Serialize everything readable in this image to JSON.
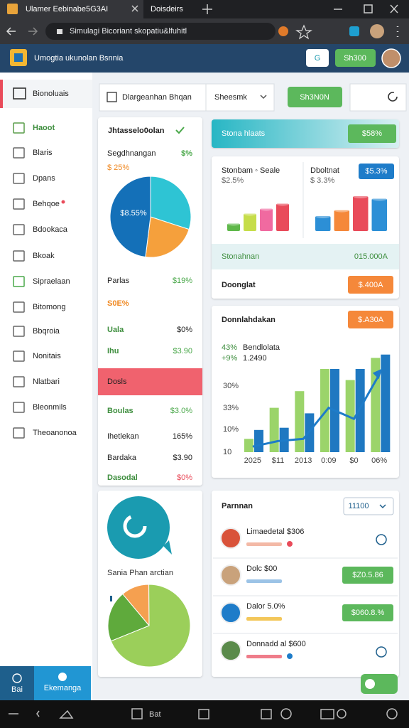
{
  "browser": {
    "tabs": [
      "Ulamer Eebinabe5G3AI",
      "Doisdeirs"
    ],
    "address": "Simulagi Bicoriant skopatiu&lfuhitl"
  },
  "header": {
    "title": "Umogtia ukunolan Bsnnia",
    "search": "G",
    "button": "Sh300"
  },
  "sidebar": {
    "title": "Bionoluais",
    "items": [
      "Haoot",
      "Blaris",
      "Dpans",
      "Behqoe",
      "Bdookaca",
      "Bkoak",
      "Sipraelaan",
      "Bitomong",
      "Bbqroia",
      "Nonitais",
      "Nlatbari",
      "Bleonmils",
      "Theoanonoa"
    ],
    "footer": [
      "Bai",
      "Ekemanga"
    ]
  },
  "toolbar": {
    "search": "Dlargeanhan Bhqan",
    "select": "Sheesmk",
    "button": "Sh3N0N"
  },
  "summary_card": {
    "title": "Jhtasselo0olan",
    "label": "Segdhnangan",
    "label_value": "$%",
    "subvalue": "$ 25%",
    "pie_label": "$8.55%",
    "pie": {
      "values": [
        30,
        22,
        48
      ],
      "colors": [
        "#2ec4d4",
        "#f5a03c",
        "#1470b8"
      ]
    },
    "rows": [
      {
        "label": "Parlas",
        "value": "$19%"
      },
      {
        "label": "S0E%"
      },
      {
        "label": "Uala",
        "value": "$0%"
      },
      {
        "label": "Ihu",
        "value": "$3.90"
      },
      {
        "label": "Dosls"
      },
      {
        "label": "Boulas",
        "value": "$3.0%"
      },
      {
        "label": "Ihetlekan",
        "value": "165%"
      },
      {
        "label": "Bardaka",
        "value": "$3.90"
      },
      {
        "label": "Dasodal",
        "value": "$0%"
      }
    ]
  },
  "banner": {
    "title": "Stona hlaats",
    "badge": "$58%"
  },
  "mini_charts": [
    {
      "title": "Stonbam ◦ Seale",
      "sub": "$2.5%",
      "ylim": [
        0,
        100
      ],
      "values": [
        15,
        35,
        45,
        55
      ],
      "colors": [
        "#5fb84a",
        "#c6dd4a",
        "#f06aa0",
        "#e94b5a"
      ]
    },
    {
      "title": "Dboltnat",
      "sub": "$ 3.3%",
      "badge": "$5.3%",
      "ylim": [
        0,
        100
      ],
      "values": [
        30,
        42,
        70,
        65
      ],
      "colors": [
        "#2c8fd6",
        "#f5883a",
        "#e94b5a",
        "#2c8fd6"
      ]
    }
  ],
  "stat_rows": [
    {
      "label": "Stonahnan",
      "value": "015.000A"
    },
    {
      "label": "Doonglat",
      "button": "$.400A"
    }
  ],
  "trend_card": {
    "title": "Donnlahdakan",
    "button": "$.A30A",
    "legend": [
      {
        "pct": "43%",
        "name": "Bendlolata"
      },
      {
        "pct": "+9%",
        "name": "1.2490"
      }
    ],
    "y_labels": [
      "30%",
      "33%",
      "10%",
      "10"
    ],
    "x_labels": [
      "2025",
      "$11",
      "2013",
      "0:09",
      "$0",
      "06%"
    ],
    "ylim": [
      0,
      100
    ],
    "series": [
      {
        "color": "#9bd46a",
        "values": [
          12,
          40,
          55,
          75,
          65,
          85
        ]
      },
      {
        "color": "#1f78c1",
        "values": [
          20,
          22,
          35,
          75,
          75,
          88
        ]
      }
    ],
    "line": {
      "color": "#1e7cc9",
      "values": [
        5,
        10,
        12,
        40,
        30,
        70
      ]
    }
  },
  "promo_card": {
    "caption": "Sania Phan arctian",
    "pie": {
      "values": [
        11,
        69,
        20
      ],
      "colors": [
        "#f5a050",
        "#9bcf5a",
        "#5faa3c"
      ]
    }
  },
  "people_card": {
    "title": "Parnnan",
    "select": "11100",
    "rows": [
      {
        "name": "Limaedetal $306"
      },
      {
        "name": "Dolc $00",
        "button": "$Z0.5.86"
      },
      {
        "name": "Dalor 5.0%",
        "button": "$060.8.%"
      },
      {
        "name": "Donnadd al $600"
      }
    ]
  },
  "bottom_bar": {
    "text": "Bat"
  }
}
